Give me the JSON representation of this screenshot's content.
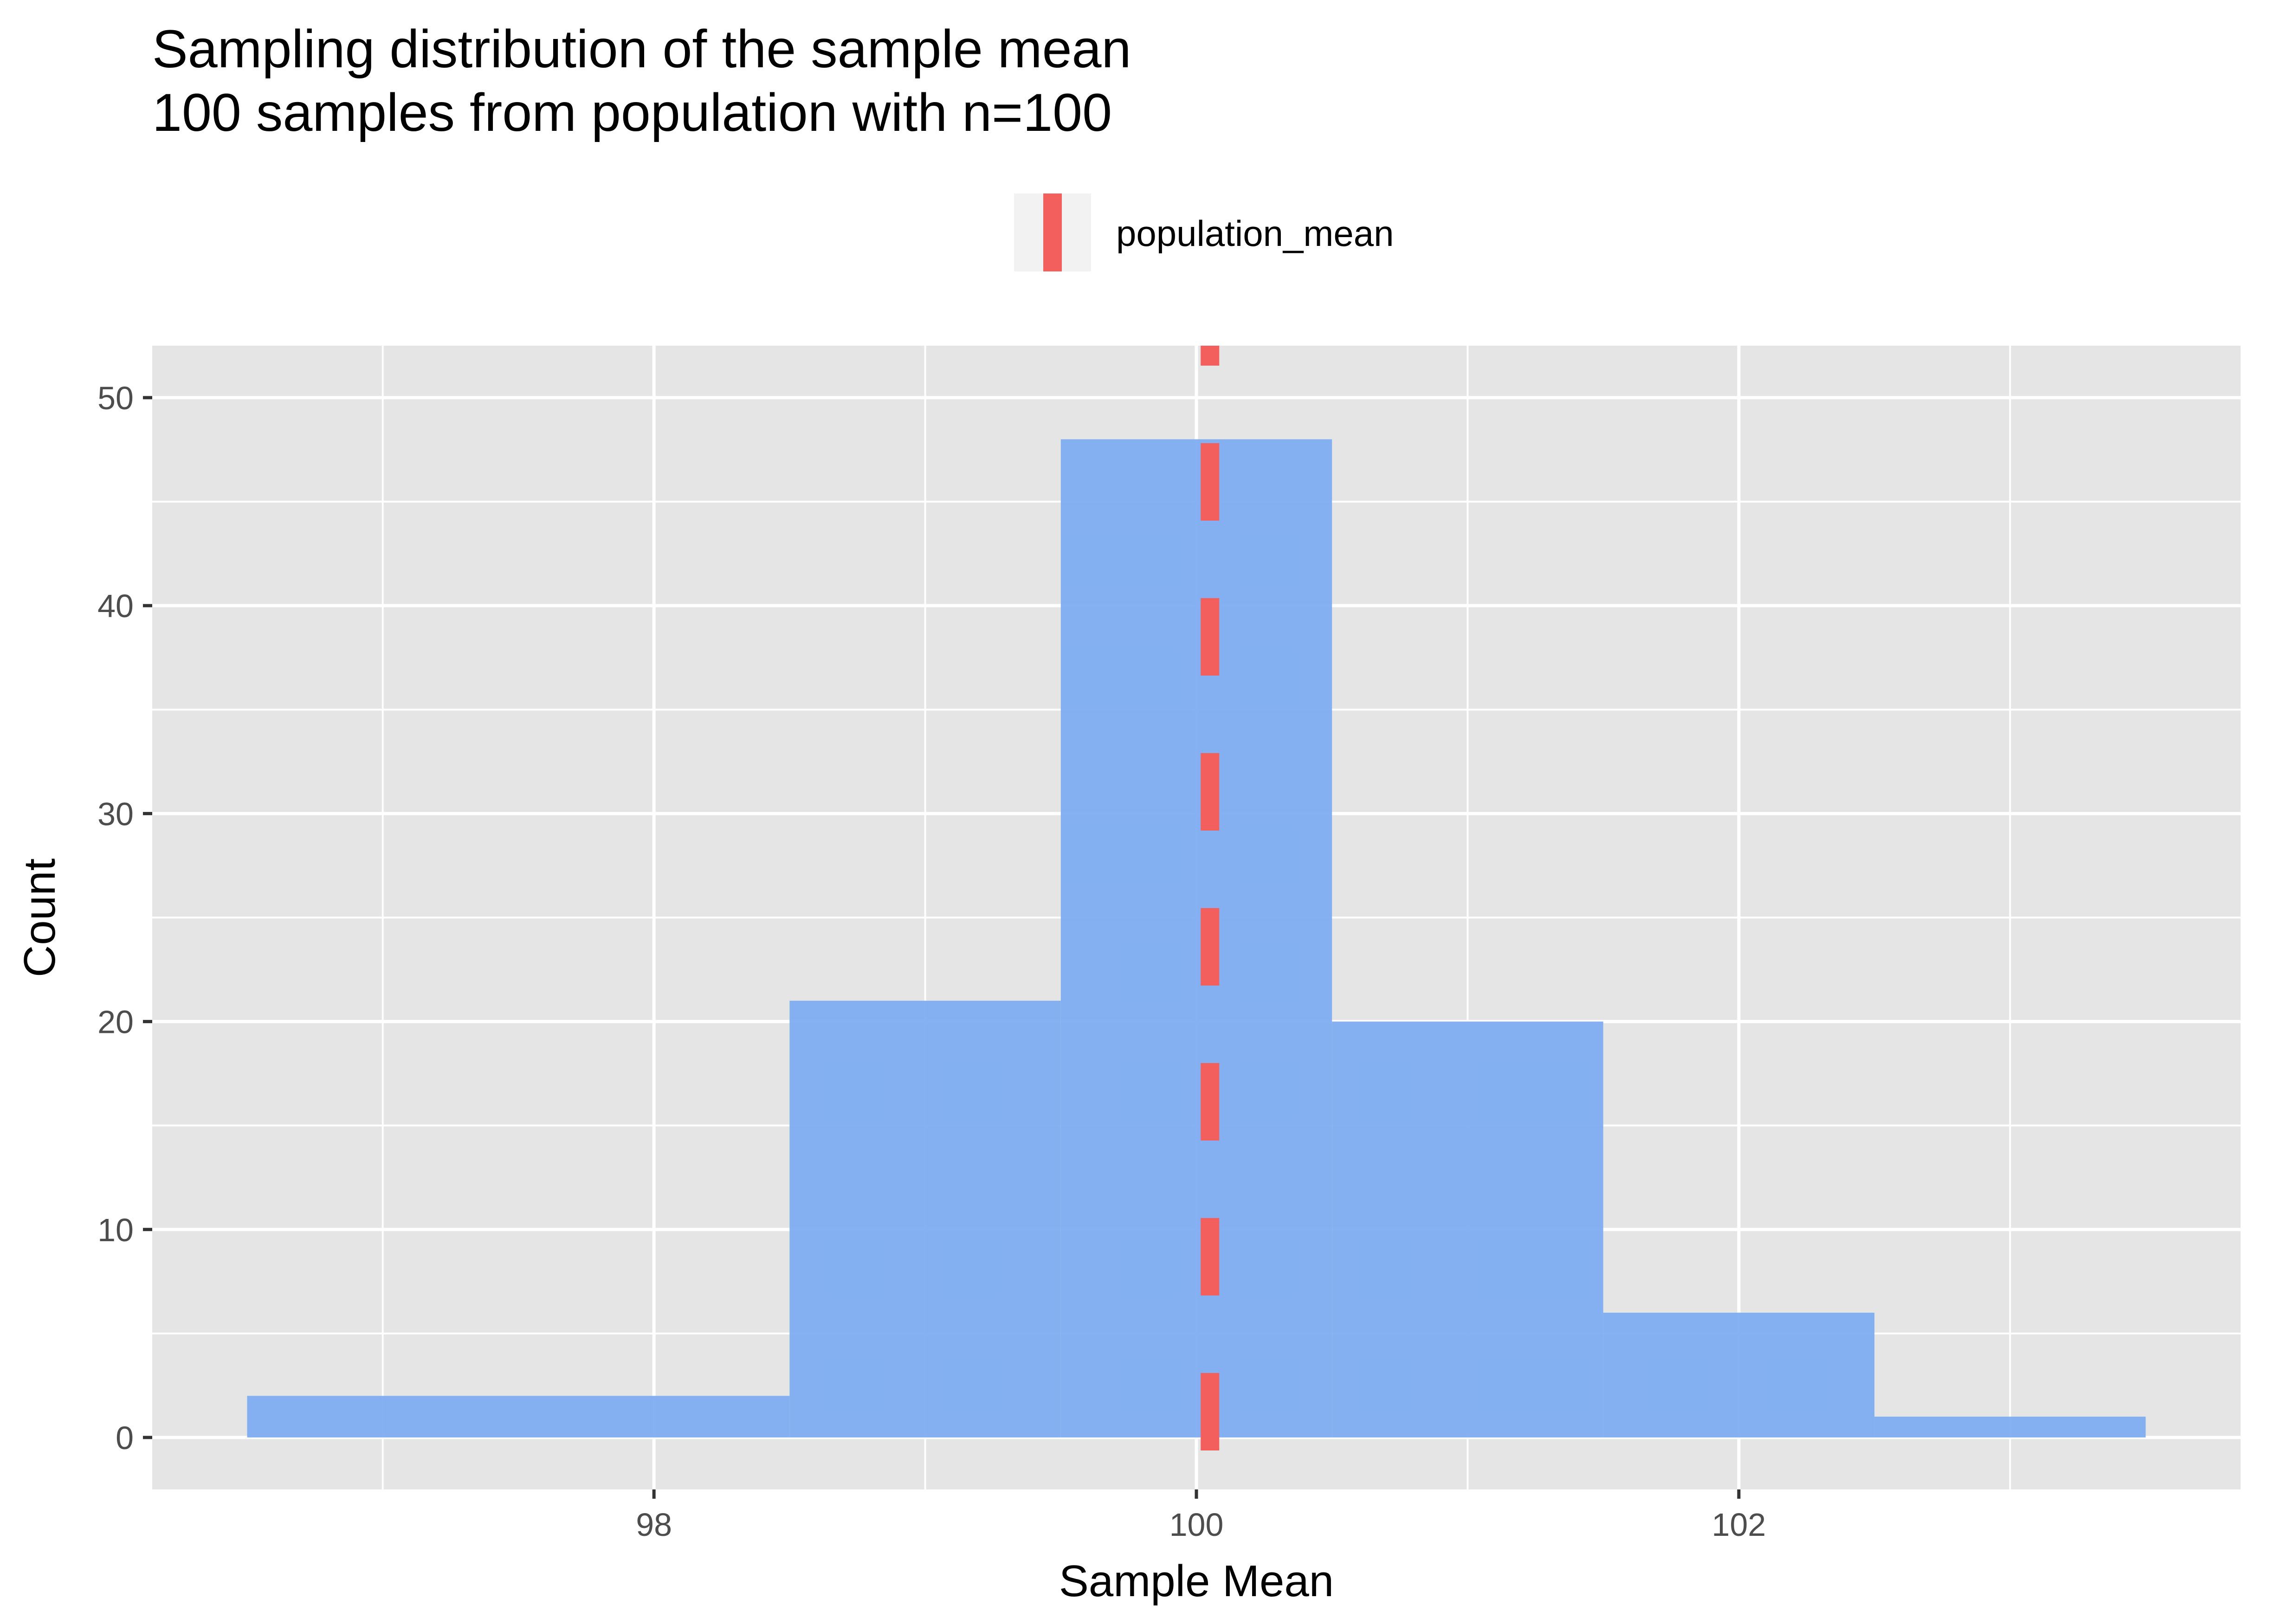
{
  "chart_data": {
    "type": "bar",
    "title": "Sampling distribution of the sample mean",
    "subtitle": "100 samples from population with n=100",
    "xlabel": "Sample Mean",
    "ylabel": "Count",
    "xlim": [
      96.5,
      103.5
    ],
    "ylim": [
      0,
      50
    ],
    "x_ticks": [
      98,
      100,
      102
    ],
    "y_ticks": [
      0,
      10,
      20,
      30,
      40,
      50
    ],
    "grid": true,
    "bins": [
      {
        "x_start": 96.5,
        "x_end": 98.5,
        "count": 2
      },
      {
        "x_start": 98.5,
        "x_end": 99.5,
        "count": 21
      },
      {
        "x_start": 99.5,
        "x_end": 100.5,
        "count": 48
      },
      {
        "x_start": 100.5,
        "x_end": 101.5,
        "count": 20
      },
      {
        "x_start": 101.5,
        "x_end": 102.5,
        "count": 6
      },
      {
        "x_start": 102.5,
        "x_end": 103.5,
        "count": 1
      }
    ],
    "reference_line": {
      "label": "population_mean",
      "x": 100.05,
      "style": "dashed"
    },
    "legend": {
      "position": "top",
      "entries": [
        "population_mean"
      ]
    },
    "colors": {
      "bar_fill": "#7eadf1",
      "reference_line": "#f25f5c",
      "panel_background": "#e5e5e5",
      "grid": "#ffffff"
    }
  }
}
